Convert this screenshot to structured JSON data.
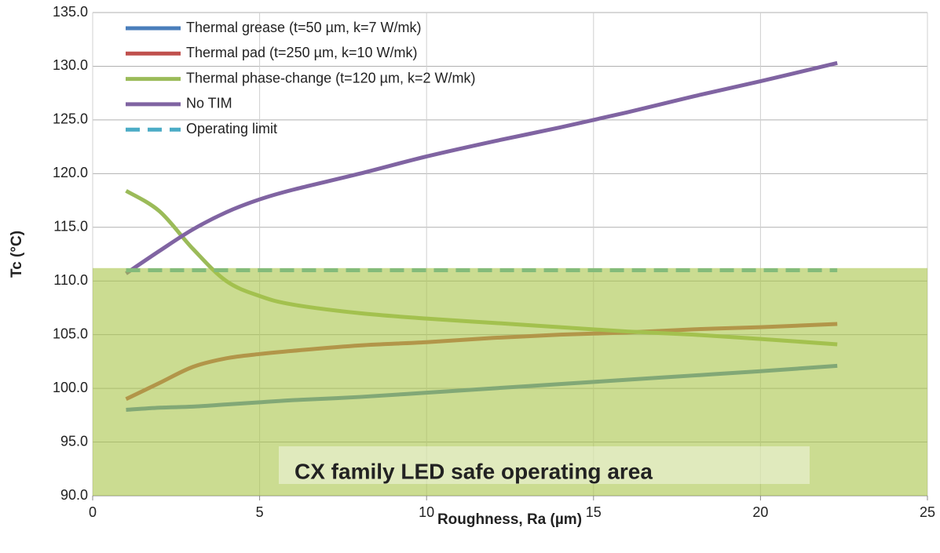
{
  "chart_data": {
    "type": "line",
    "xlabel": "Roughness, Ra (µm)",
    "ylabel": "Tc (°C)",
    "xlim": [
      0,
      25
    ],
    "xticks": [
      0,
      5,
      10,
      15,
      20,
      25
    ],
    "ylim": [
      90,
      135
    ],
    "yticks": [
      {
        "value": 90,
        "label": "90.0"
      },
      {
        "value": 95,
        "label": "95.0"
      },
      {
        "value": 100,
        "label": "100.0"
      },
      {
        "value": 105,
        "label": "105.0"
      },
      {
        "value": 110,
        "label": "110.0"
      },
      {
        "value": 115,
        "label": "115.0"
      },
      {
        "value": 120,
        "label": "120.0"
      },
      {
        "value": 125,
        "label": "125.0"
      },
      {
        "value": 130,
        "label": "130.0"
      },
      {
        "value": 135,
        "label": "135.0"
      }
    ],
    "grid": true,
    "legend": "upper left",
    "series": [
      {
        "name": "Thermal grease (t=50 µm, k=7 W/mk)",
        "color": "#4a7ebb",
        "x": [
          1,
          2,
          3,
          4,
          5,
          6,
          8,
          10,
          12,
          14,
          16,
          18,
          20,
          22.3
        ],
        "values": [
          98.0,
          98.2,
          98.3,
          98.5,
          98.7,
          98.9,
          99.2,
          99.6,
          100.0,
          100.4,
          100.8,
          101.2,
          101.6,
          102.1
        ]
      },
      {
        "name": "Thermal pad (t=250 µm, k=10 W/mk)",
        "color": "#c0504d",
        "x": [
          1,
          2,
          3,
          4,
          5,
          6,
          8,
          10,
          12,
          14,
          16,
          18,
          20,
          22.3
        ],
        "values": [
          99.0,
          100.5,
          102.0,
          102.8,
          103.2,
          103.5,
          104.0,
          104.3,
          104.7,
          105.0,
          105.2,
          105.5,
          105.7,
          106.0
        ]
      },
      {
        "name": "Thermal phase-change (t=120 µm, k=2 W/mk)",
        "color": "#9bbb59",
        "x": [
          1,
          2,
          3,
          4,
          5,
          6,
          8,
          10,
          12,
          14,
          16,
          18,
          20,
          22.3
        ],
        "values": [
          118.4,
          116.5,
          113.0,
          110.0,
          108.6,
          107.8,
          107.0,
          106.5,
          106.1,
          105.7,
          105.3,
          105.0,
          104.6,
          104.1
        ]
      },
      {
        "name": "No TIM",
        "color": "#8064a2",
        "x": [
          1,
          2,
          3,
          4,
          5,
          6,
          8,
          10,
          12,
          14,
          16,
          18,
          20,
          22.3
        ],
        "values": [
          110.7,
          112.8,
          114.8,
          116.4,
          117.6,
          118.5,
          120.0,
          121.6,
          123.0,
          124.3,
          125.7,
          127.2,
          128.6,
          130.3
        ]
      },
      {
        "name": "Operating limit",
        "color": "#4bacc6",
        "dashed": true,
        "x": [
          1,
          22.3
        ],
        "values": [
          111,
          111
        ]
      }
    ],
    "safe_area": {
      "ymax": 111.2,
      "color": "#a8c447",
      "label": "CX family LED safe operating area"
    }
  }
}
